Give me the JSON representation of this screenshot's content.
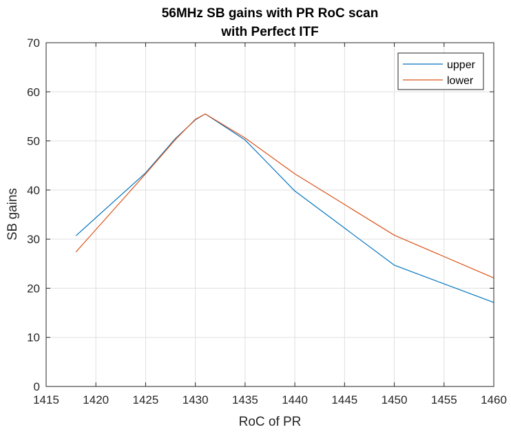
{
  "chart_data": {
    "type": "line",
    "title": [
      "56MHz SB gains with PR RoC scan",
      "with Perfect ITF"
    ],
    "xlabel": "RoC of PR",
    "ylabel": "SB gains",
    "xlim": [
      1415,
      1460
    ],
    "ylim": [
      0,
      70
    ],
    "xticks": [
      "1415",
      "1420",
      "1425",
      "1430",
      "1435",
      "1440",
      "1445",
      "1450",
      "1455",
      "1460"
    ],
    "yticks": [
      "0",
      "10",
      "20",
      "30",
      "40",
      "50",
      "60",
      "70"
    ],
    "grid": true,
    "legend_position": "top-right",
    "series": [
      {
        "name": "upper",
        "color": "#0072BD",
        "x": [
          1418,
          1425,
          1428,
          1430,
          1431,
          1435,
          1440,
          1450,
          1460
        ],
        "y": [
          30.7,
          43.5,
          50.5,
          54.3,
          55.5,
          50.2,
          39.8,
          24.7,
          17.1
        ]
      },
      {
        "name": "lower",
        "color": "#D95319",
        "x": [
          1418,
          1425,
          1428,
          1430,
          1431,
          1435,
          1440,
          1450,
          1460
        ],
        "y": [
          27.4,
          43.3,
          50.3,
          54.4,
          55.5,
          50.6,
          43.3,
          30.8,
          22.1
        ]
      }
    ]
  }
}
